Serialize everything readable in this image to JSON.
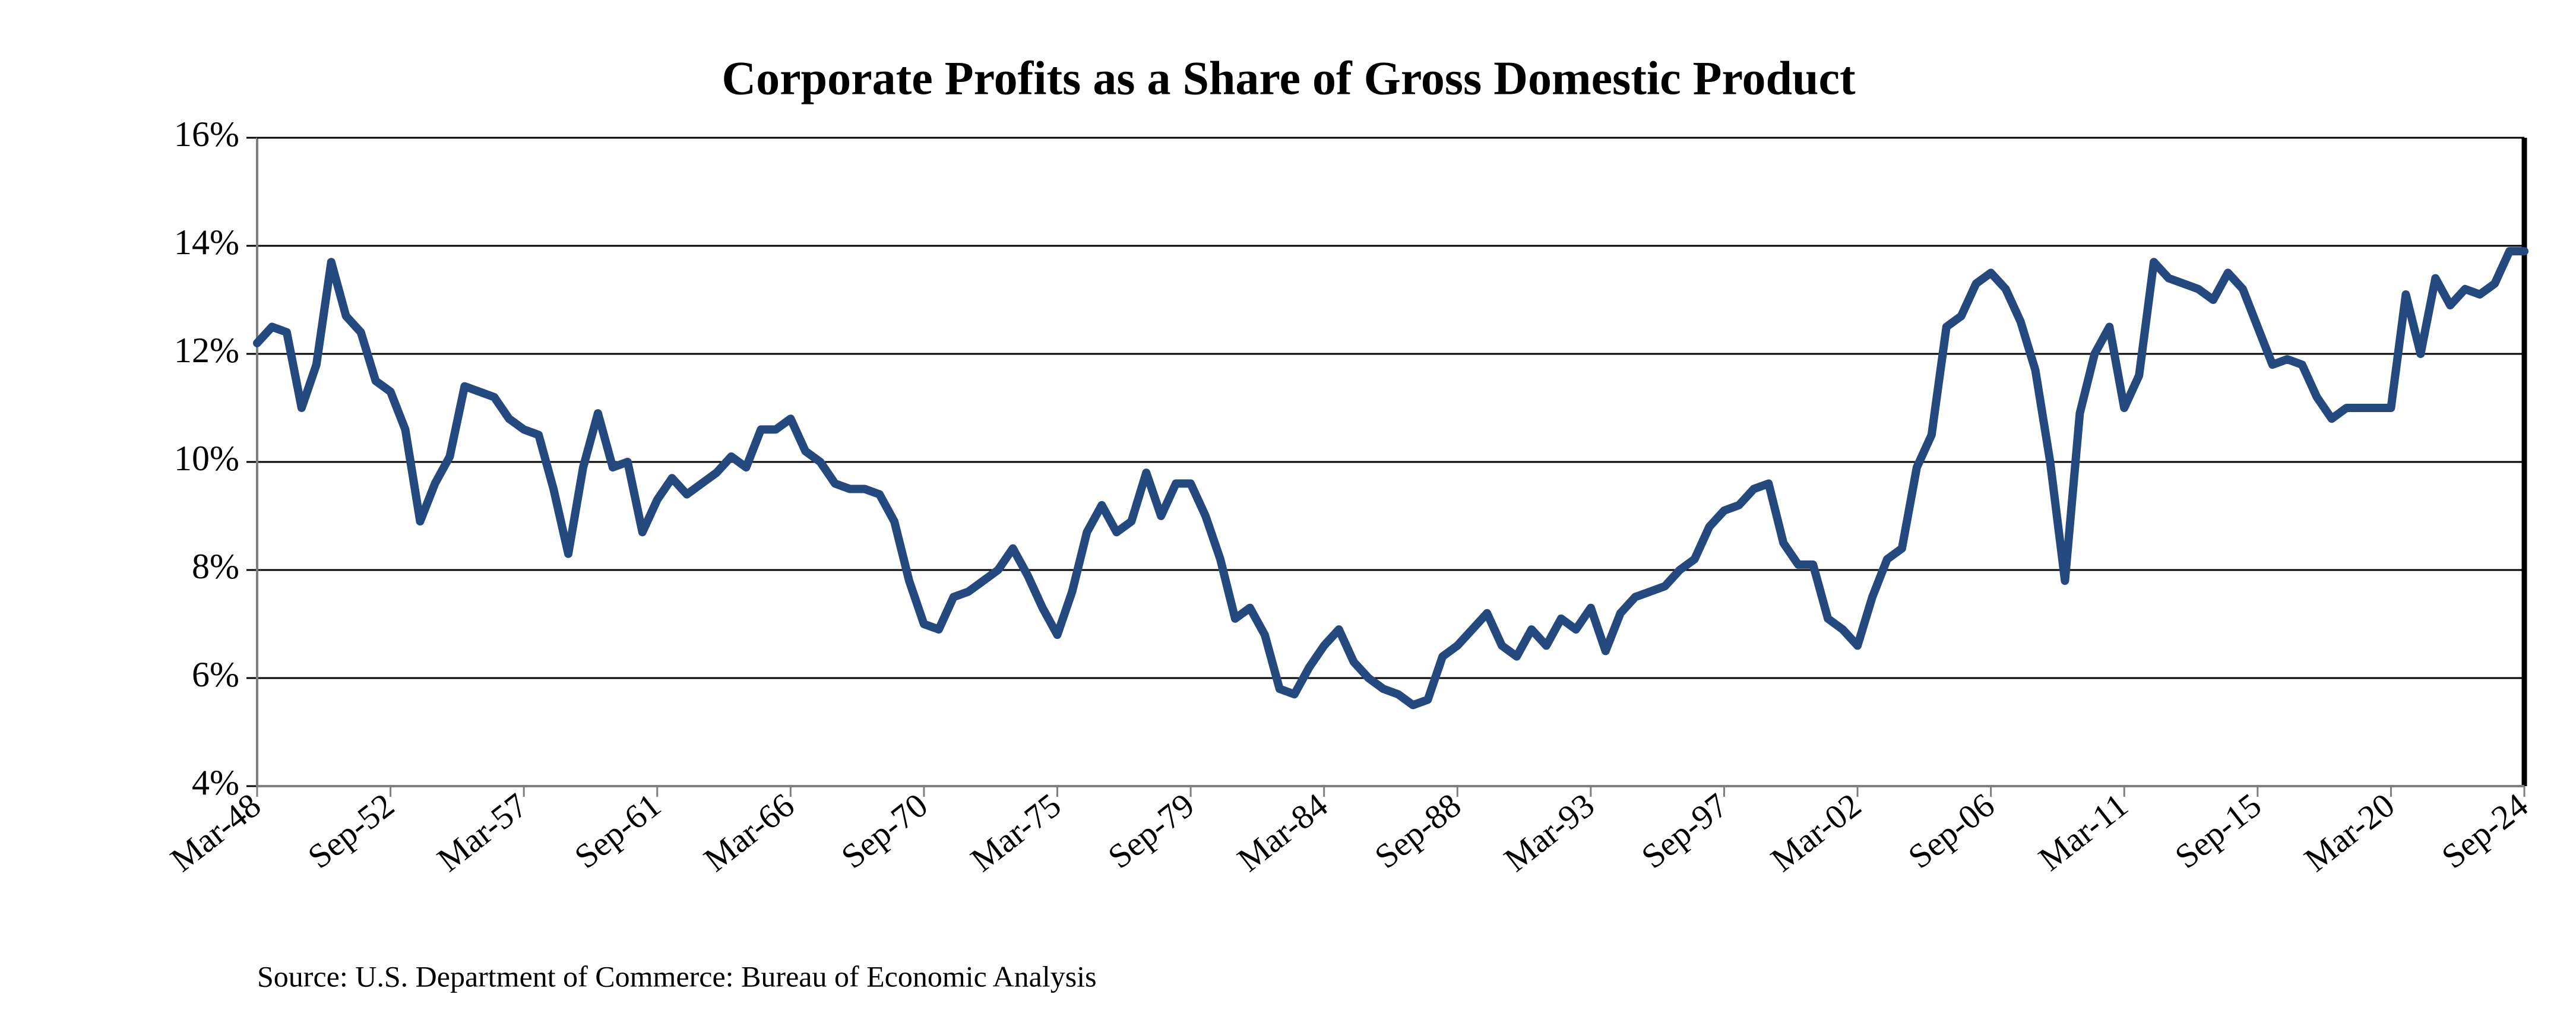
{
  "chart_data": {
    "type": "line",
    "title": "Corporate Profits as a Share of Gross Domestic Product",
    "source": "Source: U.S. Department of Commerce: Bureau of Economic Analysis",
    "categories": [
      "Mar-48",
      null,
      null,
      null,
      null,
      null,
      null,
      null,
      null,
      "Sep-52",
      null,
      null,
      null,
      null,
      null,
      null,
      null,
      null,
      "Mar-57",
      null,
      null,
      null,
      null,
      null,
      null,
      null,
      null,
      "Sep-61",
      null,
      null,
      null,
      null,
      null,
      null,
      null,
      null,
      "Mar-66",
      null,
      null,
      null,
      null,
      null,
      null,
      null,
      null,
      "Sep-70",
      null,
      null,
      null,
      null,
      null,
      null,
      null,
      null,
      "Mar-75",
      null,
      null,
      null,
      null,
      null,
      null,
      null,
      null,
      "Sep-79",
      null,
      null,
      null,
      null,
      null,
      null,
      null,
      null,
      "Mar-84",
      null,
      null,
      null,
      null,
      null,
      null,
      null,
      null,
      "Sep-88",
      null,
      null,
      null,
      null,
      null,
      null,
      null,
      null,
      "Mar-93",
      null,
      null,
      null,
      null,
      null,
      null,
      null,
      null,
      "Sep-97",
      null,
      null,
      null,
      null,
      null,
      null,
      null,
      null,
      "Mar-02",
      null,
      null,
      null,
      null,
      null,
      null,
      null,
      null,
      "Sep-06",
      null,
      null,
      null,
      null,
      null,
      null,
      null,
      null,
      "Mar-11",
      null,
      null,
      null,
      null,
      null,
      null,
      null,
      null,
      "Sep-15",
      null,
      null,
      null,
      null,
      null,
      null,
      null,
      null,
      "Mar-20",
      null,
      null,
      null,
      null,
      null,
      null,
      null,
      null,
      "Sep-24"
    ],
    "series": [
      {
        "name": "Corporate Profits as a Share of GDP",
        "color": "#24497f",
        "values": [
          12.2,
          12.5,
          12.4,
          11.0,
          11.8,
          13.7,
          12.7,
          12.4,
          11.5,
          11.3,
          10.6,
          8.9,
          9.6,
          10.1,
          11.4,
          11.3,
          11.2,
          10.8,
          10.6,
          10.5,
          9.5,
          8.3,
          9.9,
          10.9,
          9.9,
          10.0,
          8.7,
          9.3,
          9.7,
          9.4,
          9.6,
          9.8,
          10.1,
          9.9,
          10.6,
          10.6,
          10.8,
          10.2,
          10.0,
          9.6,
          9.5,
          9.5,
          9.4,
          8.9,
          7.8,
          7.0,
          6.9,
          7.5,
          7.6,
          7.8,
          8.0,
          8.4,
          7.9,
          7.3,
          6.8,
          7.6,
          8.7,
          9.2,
          8.7,
          8.9,
          9.8,
          9.0,
          9.6,
          9.6,
          9.0,
          8.2,
          7.1,
          7.3,
          6.8,
          5.8,
          5.7,
          6.2,
          6.6,
          6.9,
          6.3,
          6.0,
          5.8,
          5.7,
          5.5,
          5.6,
          6.4,
          6.6,
          6.9,
          7.2,
          6.6,
          6.4,
          6.9,
          6.6,
          7.1,
          6.9,
          7.3,
          6.5,
          7.2,
          7.5,
          7.6,
          7.7,
          8.0,
          8.2,
          8.8,
          9.1,
          9.2,
          9.5,
          9.6,
          8.5,
          8.1,
          8.1,
          7.1,
          6.9,
          6.6,
          7.5,
          8.2,
          8.4,
          9.9,
          10.5,
          12.5,
          12.7,
          13.3,
          13.5,
          13.2,
          12.6,
          11.7,
          10.0,
          7.8,
          10.9,
          12.0,
          12.5,
          11.0,
          11.6,
          13.7,
          13.4,
          13.3,
          13.2,
          13.0,
          13.5,
          13.2,
          12.5,
          11.8,
          11.9,
          11.8,
          11.2,
          10.8,
          11.0,
          11.0,
          11.0,
          11.0,
          13.1,
          12.0,
          13.4,
          12.9,
          13.2,
          13.1,
          13.3,
          13.9,
          13.9
        ]
      }
    ],
    "ylim": [
      4,
      16
    ],
    "yticks": [
      {
        "value": 4,
        "label": "4%"
      },
      {
        "value": 6,
        "label": "6%"
      },
      {
        "value": 8,
        "label": "8%"
      },
      {
        "value": 10,
        "label": "10%"
      },
      {
        "value": 12,
        "label": "12%"
      },
      {
        "value": 14,
        "label": "14%"
      },
      {
        "value": 16,
        "label": "16%"
      }
    ],
    "grid": true
  }
}
